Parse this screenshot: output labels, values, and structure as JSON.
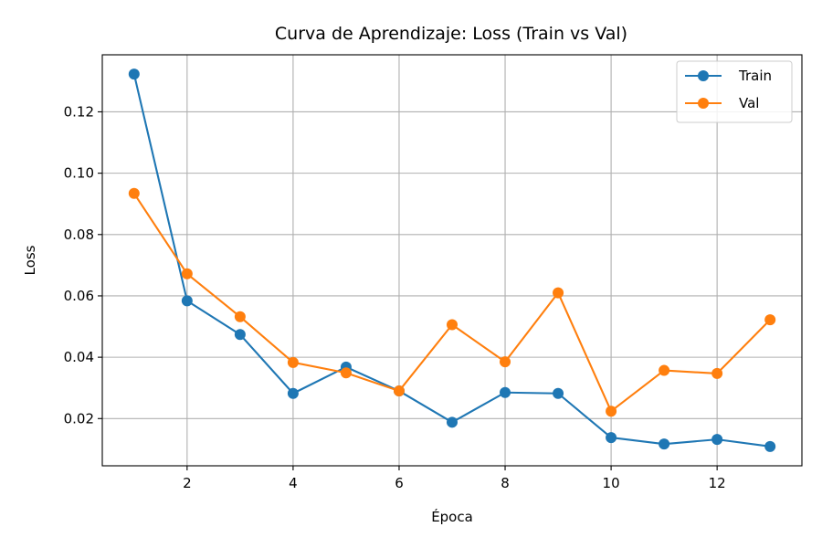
{
  "chart_data": {
    "type": "line",
    "title": "Curva de Aprendizaje: Loss (Train vs Val)",
    "xlabel": "Época",
    "ylabel": "Loss",
    "x": [
      1,
      2,
      3,
      4,
      5,
      6,
      7,
      8,
      9,
      10,
      11,
      12,
      13
    ],
    "series": [
      {
        "name": "Train",
        "color": "#1f77b4",
        "values": [
          0.1323,
          0.0584,
          0.0474,
          0.0282,
          0.0368,
          0.029,
          0.0188,
          0.0285,
          0.0282,
          0.0138,
          0.0117,
          0.0132,
          0.0109
        ]
      },
      {
        "name": "Val",
        "color": "#ff7f0e",
        "values": [
          0.0934,
          0.0672,
          0.0532,
          0.0383,
          0.0349,
          0.029,
          0.0506,
          0.0385,
          0.061,
          0.0224,
          0.0357,
          0.0347,
          0.0522
        ]
      }
    ],
    "xlim": [
      0.4,
      13.6
    ],
    "ylim": [
      0.0046,
      0.1386
    ],
    "xticks": [
      2,
      4,
      6,
      8,
      10,
      12
    ],
    "yticks": [
      0.02,
      0.04,
      0.06,
      0.08,
      0.1,
      0.12
    ],
    "ytick_labels": [
      "0.02",
      "0.04",
      "0.06",
      "0.08",
      "0.10",
      "0.12"
    ],
    "grid": true,
    "legend_position": "top-right"
  }
}
